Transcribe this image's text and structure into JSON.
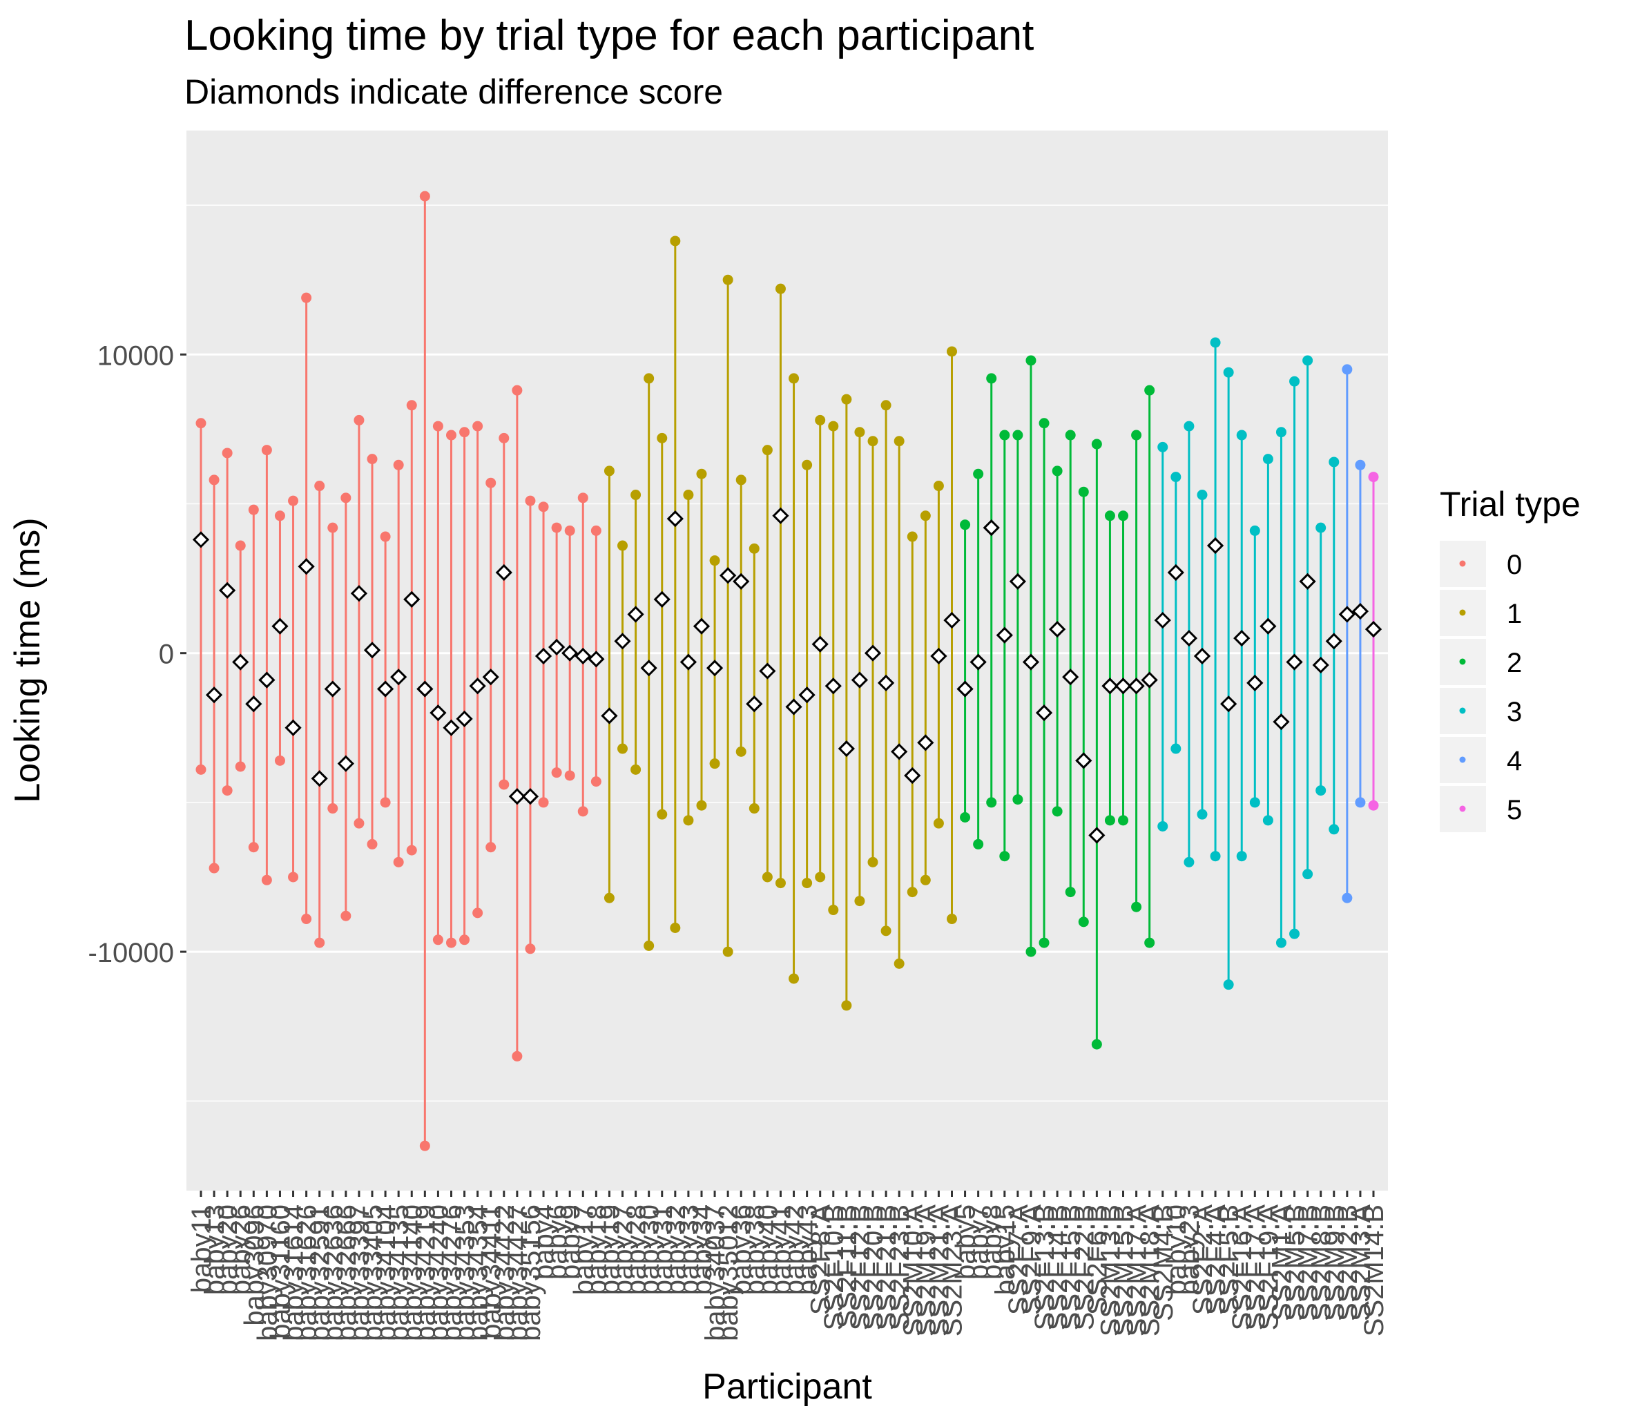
{
  "chart_data": {
    "type": "scatter",
    "title": "Looking time by trial type for each participant",
    "subtitle": "Diamonds indicate difference score",
    "xlabel": "Participant",
    "ylabel": "Looking time (ms)",
    "ylim": [
      -18000,
      17500
    ],
    "y_ticks": [
      -10000,
      0,
      10000
    ],
    "grid": true,
    "legend": {
      "title": "Trial type",
      "placement": "right",
      "entries": [
        {
          "label": "0",
          "color": "#F8766D"
        },
        {
          "label": "1",
          "color": "#B79F00"
        },
        {
          "label": "2",
          "color": "#00BA38"
        },
        {
          "label": "3",
          "color": "#00BFC4"
        },
        {
          "label": "4",
          "color": "#619CFF"
        },
        {
          "label": "5",
          "color": "#F564E3"
        }
      ]
    },
    "colors": {
      "panel": "#EBEBEB",
      "gridline": "#FFFFFF",
      "diamond_fill": "#FFFFFF",
      "diamond_stroke": "#000000",
      "text": "#000000",
      "axis_text": "#4D4D4D"
    },
    "participants": [
      {
        "name": "baby11",
        "trial_type": 0,
        "high": 7700,
        "low": -3900,
        "diff": 3800
      },
      {
        "name": "baby13",
        "trial_type": 0,
        "high": 5800,
        "low": -7200,
        "diff": -1400
      },
      {
        "name": "baby20",
        "trial_type": 0,
        "high": 6700,
        "low": -4600,
        "diff": 2100
      },
      {
        "name": "baby26",
        "trial_type": 0,
        "high": 3600,
        "low": -3800,
        "diff": -300
      },
      {
        "name": "baby3096",
        "trial_type": 0,
        "high": 4800,
        "low": -6500,
        "diff": -1700
      },
      {
        "name": "baby30970",
        "trial_type": 0,
        "high": 6800,
        "low": -7600,
        "diff": -900
      },
      {
        "name": "baby31160",
        "trial_type": 0,
        "high": 4600,
        "low": -3600,
        "diff": 900
      },
      {
        "name": "baby31614",
        "trial_type": 0,
        "high": 5100,
        "low": -7500,
        "diff": -2500
      },
      {
        "name": "baby31626",
        "trial_type": 0,
        "high": 11900,
        "low": -8900,
        "diff": 2900
      },
      {
        "name": "baby32591",
        "trial_type": 0,
        "high": 5600,
        "low": -9700,
        "diff": -4200
      },
      {
        "name": "baby32636",
        "trial_type": 0,
        "high": 4200,
        "low": -5200,
        "diff": -1200
      },
      {
        "name": "baby32666",
        "trial_type": 0,
        "high": 5200,
        "low": -8800,
        "diff": -3700
      },
      {
        "name": "baby33397",
        "trial_type": 0,
        "high": 7800,
        "low": -5700,
        "diff": 2000
      },
      {
        "name": "baby33405",
        "trial_type": 0,
        "high": 6500,
        "low": -6400,
        "diff": 100
      },
      {
        "name": "baby34104",
        "trial_type": 0,
        "high": 3900,
        "low": -5000,
        "diff": -1200
      },
      {
        "name": "baby34135",
        "trial_type": 0,
        "high": 6300,
        "low": -7000,
        "diff": -800
      },
      {
        "name": "baby34140",
        "trial_type": 0,
        "high": 8300,
        "low": -6600,
        "diff": 1800
      },
      {
        "name": "baby34219",
        "trial_type": 0,
        "high": 15300,
        "low": -16500,
        "diff": -1200
      },
      {
        "name": "baby34240",
        "trial_type": 0,
        "high": 7600,
        "low": -9600,
        "diff": -2000
      },
      {
        "name": "baby34276",
        "trial_type": 0,
        "high": 7300,
        "low": -9700,
        "diff": -2500
      },
      {
        "name": "baby34353",
        "trial_type": 0,
        "high": 7400,
        "low": -9600,
        "diff": -2200
      },
      {
        "name": "baby34354",
        "trial_type": 0,
        "high": 7600,
        "low": -8700,
        "diff": -1100
      },
      {
        "name": "baby34411",
        "trial_type": 0,
        "high": 5700,
        "low": -6500,
        "diff": -800
      },
      {
        "name": "baby34422",
        "trial_type": 0,
        "high": 7200,
        "low": -4400,
        "diff": 2700
      },
      {
        "name": "baby34427",
        "trial_type": 0,
        "high": 8800,
        "low": -13500,
        "diff": -4800
      },
      {
        "name": "baby35156",
        "trial_type": 0,
        "high": 5100,
        "low": -9900,
        "diff": -4800
      },
      {
        "name": "baby4",
        "trial_type": 0,
        "high": 4900,
        "low": -5000,
        "diff": -100
      },
      {
        "name": "baby6",
        "trial_type": 0,
        "high": 4200,
        "low": -4000,
        "diff": 200
      },
      {
        "name": "baby9",
        "trial_type": 0,
        "high": 4100,
        "low": -4100,
        "diff": 0
      },
      {
        "name": "baby17",
        "trial_type": 0,
        "high": 5200,
        "low": -5300,
        "diff": -100
      },
      {
        "name": "baby18",
        "trial_type": 0,
        "high": 4100,
        "low": -4300,
        "diff": -200
      },
      {
        "name": "baby19",
        "trial_type": 1,
        "high": 6100,
        "low": -8200,
        "diff": -2100
      },
      {
        "name": "baby27",
        "trial_type": 1,
        "high": 3600,
        "low": -3200,
        "diff": 400
      },
      {
        "name": "baby28",
        "trial_type": 1,
        "high": 5300,
        "low": -3900,
        "diff": 1300
      },
      {
        "name": "baby30",
        "trial_type": 1,
        "high": 9200,
        "low": -9800,
        "diff": -500
      },
      {
        "name": "baby31",
        "trial_type": 1,
        "high": 7200,
        "low": -5400,
        "diff": 1800
      },
      {
        "name": "baby32",
        "trial_type": 1,
        "high": 13800,
        "low": -9200,
        "diff": 4500
      },
      {
        "name": "baby33",
        "trial_type": 1,
        "high": 5300,
        "low": -5600,
        "diff": -300
      },
      {
        "name": "baby34",
        "trial_type": 1,
        "high": 6000,
        "low": -5100,
        "diff": 900
      },
      {
        "name": "baby34037",
        "trial_type": 1,
        "high": 3100,
        "low": -3700,
        "diff": -500
      },
      {
        "name": "baby35012",
        "trial_type": 1,
        "high": 12500,
        "low": -10000,
        "diff": 2600
      },
      {
        "name": "baby36",
        "trial_type": 1,
        "high": 5800,
        "low": -3300,
        "diff": 2400
      },
      {
        "name": "baby38",
        "trial_type": 1,
        "high": 3500,
        "low": -5200,
        "diff": -1700
      },
      {
        "name": "baby40",
        "trial_type": 1,
        "high": 6800,
        "low": -7500,
        "diff": -600
      },
      {
        "name": "baby41",
        "trial_type": 1,
        "high": 12200,
        "low": -7700,
        "diff": 4600
      },
      {
        "name": "baby42",
        "trial_type": 1,
        "high": 9200,
        "low": -10900,
        "diff": -1800
      },
      {
        "name": "baby43",
        "trial_type": 1,
        "high": 6300,
        "low": -7700,
        "diff": -1400
      },
      {
        "name": "SS2F8:A",
        "trial_type": 1,
        "high": 7800,
        "low": -7500,
        "diff": 300
      },
      {
        "name": "SS2F10:B",
        "trial_type": 1,
        "high": 7600,
        "low": -8600,
        "diff": -1100
      },
      {
        "name": "SS2F11:B",
        "trial_type": 1,
        "high": 8500,
        "low": -11800,
        "diff": -3200
      },
      {
        "name": "SS2F12:B",
        "trial_type": 1,
        "high": 7400,
        "low": -8300,
        "diff": -900
      },
      {
        "name": "SS2F20:B",
        "trial_type": 1,
        "high": 7100,
        "low": -7000,
        "diff": 0
      },
      {
        "name": "SS2F21:B",
        "trial_type": 1,
        "high": 8300,
        "low": -9300,
        "diff": -1000
      },
      {
        "name": "SS2F23:B",
        "trial_type": 1,
        "high": 7100,
        "low": -10400,
        "diff": -3300
      },
      {
        "name": "SS2M10:A",
        "trial_type": 1,
        "high": 3900,
        "low": -8000,
        "diff": -4100
      },
      {
        "name": "SS2M19:A",
        "trial_type": 1,
        "high": 4600,
        "low": -7600,
        "diff": -3000
      },
      {
        "name": "SS2M21:A",
        "trial_type": 1,
        "high": 5600,
        "low": -5700,
        "diff": -100
      },
      {
        "name": "SS2M23:A",
        "trial_type": 1,
        "high": 10100,
        "low": -8900,
        "diff": 1100
      },
      {
        "name": "baby5",
        "trial_type": 2,
        "high": 4300,
        "low": -5500,
        "diff": -1200
      },
      {
        "name": "baby7",
        "trial_type": 2,
        "high": 6000,
        "low": -6400,
        "diff": -300
      },
      {
        "name": "baby8",
        "trial_type": 2,
        "high": 9200,
        "low": -5000,
        "diff": 4200
      },
      {
        "name": "baby15",
        "trial_type": 2,
        "high": 7300,
        "low": -6800,
        "diff": 600
      },
      {
        "name": "SS2F7:A",
        "trial_type": 2,
        "high": 7300,
        "low": -4900,
        "diff": 2400
      },
      {
        "name": "SS2F9:A",
        "trial_type": 2,
        "high": 9800,
        "low": -10000,
        "diff": -300
      },
      {
        "name": "SS2F13:B",
        "trial_type": 2,
        "high": 7700,
        "low": -9700,
        "diff": -2000
      },
      {
        "name": "SS2F14:B",
        "trial_type": 2,
        "high": 6100,
        "low": -5300,
        "diff": 800
      },
      {
        "name": "SS2F15:B",
        "trial_type": 2,
        "high": 7300,
        "low": -8000,
        "diff": -800
      },
      {
        "name": "SS2F22:B",
        "trial_type": 2,
        "high": 5400,
        "low": -9000,
        "diff": -3600
      },
      {
        "name": "SS2F6:B",
        "trial_type": 2,
        "high": 7000,
        "low": -13100,
        "diff": -6100
      },
      {
        "name": "SS2M13:B",
        "trial_type": 2,
        "high": 4600,
        "low": -5600,
        "diff": -1100
      },
      {
        "name": "SS2M15:B",
        "trial_type": 2,
        "high": 4600,
        "low": -5600,
        "diff": -1100
      },
      {
        "name": "SS2M17:A",
        "trial_type": 2,
        "high": 7300,
        "low": -8500,
        "diff": -1100
      },
      {
        "name": "SS2M18:A",
        "trial_type": 2,
        "high": 8800,
        "low": -9700,
        "diff": -900
      },
      {
        "name": "SS2M4:B",
        "trial_type": 3,
        "high": 6900,
        "low": -5800,
        "diff": 1100
      },
      {
        "name": "baby10",
        "trial_type": 3,
        "high": 5900,
        "low": -3200,
        "diff": 2700
      },
      {
        "name": "baby23",
        "trial_type": 3,
        "high": 7600,
        "low": -7000,
        "diff": 500
      },
      {
        "name": "SS2F2:A",
        "trial_type": 3,
        "high": 5300,
        "low": -5400,
        "diff": -100
      },
      {
        "name": "SS2F4:A",
        "trial_type": 3,
        "high": 10400,
        "low": -6800,
        "diff": 3600
      },
      {
        "name": "SS2F5:B",
        "trial_type": 3,
        "high": 9400,
        "low": -11100,
        "diff": -1700
      },
      {
        "name": "SS2F16:A",
        "trial_type": 3,
        "high": 7300,
        "low": -6800,
        "diff": 500
      },
      {
        "name": "SS2F17:A",
        "trial_type": 3,
        "high": 4100,
        "low": -5000,
        "diff": -1000
      },
      {
        "name": "SS2F19:A",
        "trial_type": 3,
        "high": 6500,
        "low": -5600,
        "diff": 900
      },
      {
        "name": "SS2M1:A",
        "trial_type": 3,
        "high": 7400,
        "low": -9700,
        "diff": -2300
      },
      {
        "name": "SS2M5:B",
        "trial_type": 3,
        "high": 9100,
        "low": -9400,
        "diff": -300
      },
      {
        "name": "SS2M7:B",
        "trial_type": 3,
        "high": 9800,
        "low": -7400,
        "diff": 2400
      },
      {
        "name": "SS2M8:B",
        "trial_type": 3,
        "high": 4200,
        "low": -4600,
        "diff": -400
      },
      {
        "name": "SS2M9:B",
        "trial_type": 3,
        "high": 6400,
        "low": -5900,
        "diff": 400
      },
      {
        "name": "SS2M2:B",
        "trial_type": 4,
        "high": 9500,
        "low": -8200,
        "diff": 1300
      },
      {
        "name": "SS2M3:A",
        "trial_type": 4,
        "high": 6300,
        "low": -5000,
        "diff": 1400
      },
      {
        "name": "SS2M14:B",
        "trial_type": 5,
        "high": 5900,
        "low": -5100,
        "diff": 800
      }
    ]
  }
}
